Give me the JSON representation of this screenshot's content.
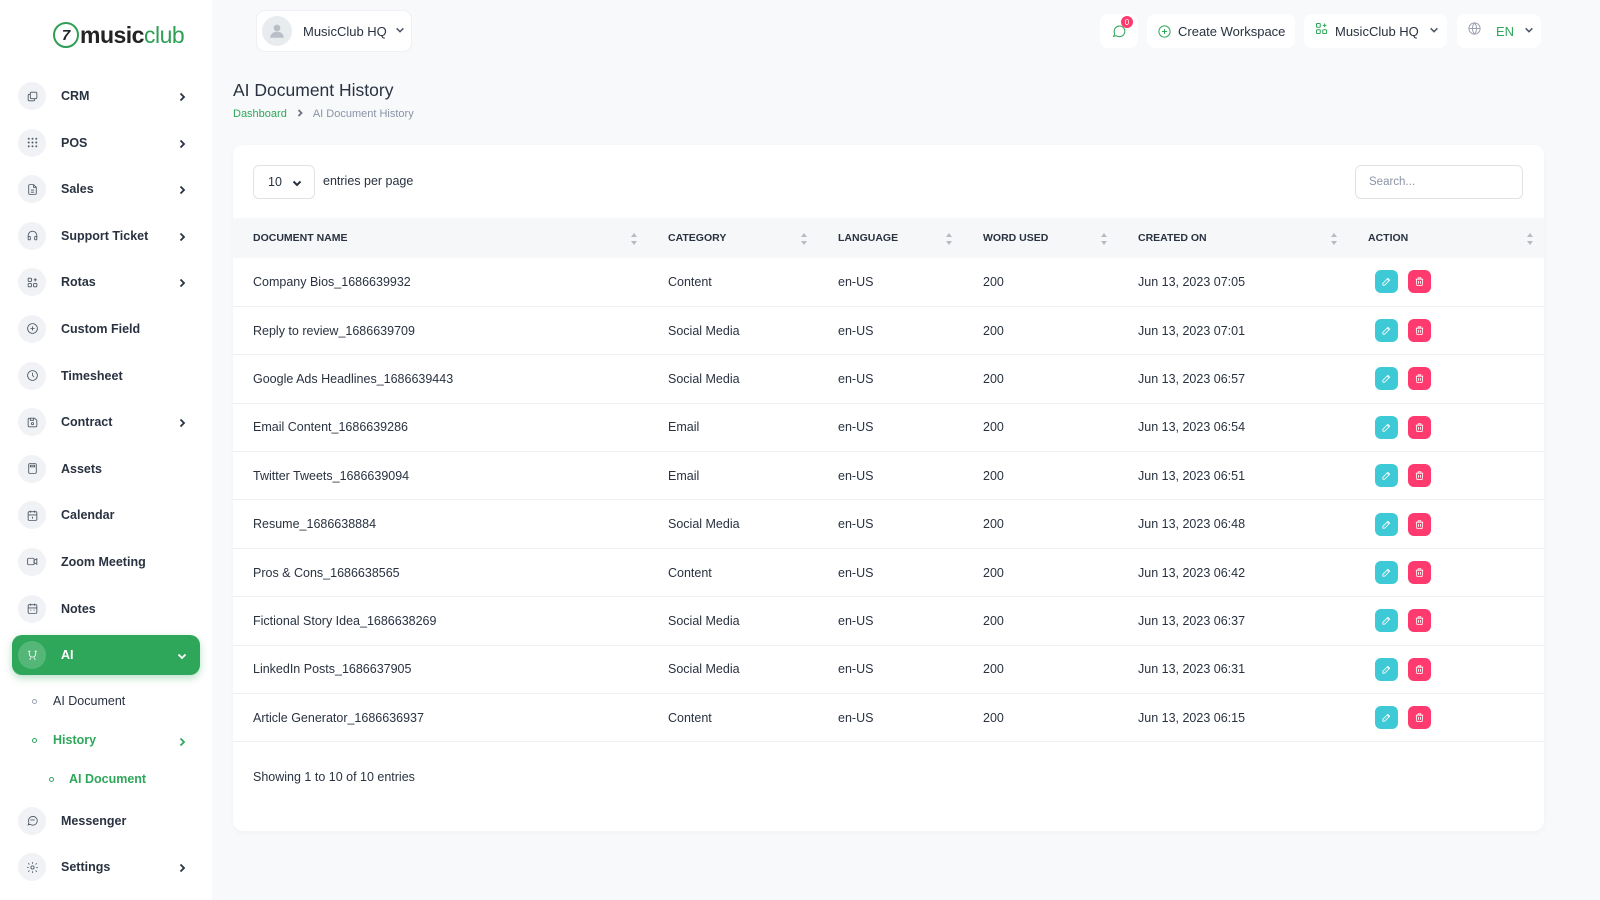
{
  "brand": {
    "logo_mark": "7",
    "name_part1": "music",
    "name_part2": "club"
  },
  "workspace_switcher": {
    "label": "MusicClub HQ"
  },
  "header": {
    "messages_badge": "0",
    "create_workspace_label": "Create Workspace",
    "workspace_label": "MusicClub HQ",
    "language_label": "EN"
  },
  "sidebar": {
    "items": [
      {
        "label": "CRM",
        "icon": "layers-icon",
        "has_chevron": true
      },
      {
        "label": "POS",
        "icon": "grid-dots-icon",
        "has_chevron": true
      },
      {
        "label": "Sales",
        "icon": "file-icon",
        "has_chevron": true
      },
      {
        "label": "Support Ticket",
        "icon": "headphones-icon",
        "has_chevron": true
      },
      {
        "label": "Rotas",
        "icon": "apps-icon",
        "has_chevron": true
      },
      {
        "label": "Custom Field",
        "icon": "plus-circle-icon",
        "has_chevron": false
      },
      {
        "label": "Timesheet",
        "icon": "clock-icon",
        "has_chevron": false
      },
      {
        "label": "Contract",
        "icon": "device-floppy-icon",
        "has_chevron": true
      },
      {
        "label": "Assets",
        "icon": "calculator-icon",
        "has_chevron": false
      },
      {
        "label": "Calendar",
        "icon": "calendar-icon",
        "has_chevron": false
      },
      {
        "label": "Zoom Meeting",
        "icon": "video-icon",
        "has_chevron": false
      },
      {
        "label": "Notes",
        "icon": "notes-calendar-icon",
        "has_chevron": false
      },
      {
        "label": "AI",
        "icon": "ai-icon",
        "has_chevron": true,
        "active": true
      }
    ],
    "ai_submenu": {
      "ai_document": "AI Document",
      "history": "History",
      "history_child": "AI Document"
    },
    "bottom_items": [
      {
        "label": "Messenger",
        "icon": "message-icon",
        "has_chevron": false
      },
      {
        "label": "Settings",
        "icon": "settings-icon",
        "has_chevron": true
      }
    ]
  },
  "page": {
    "title": "AI Document History",
    "breadcrumb": {
      "home": "Dashboard",
      "current": "AI Document History"
    }
  },
  "table_controls": {
    "per_page_value": "10",
    "per_page_label": "entries per page",
    "search_placeholder": "Search..."
  },
  "table": {
    "columns": [
      "Document Name",
      "Category",
      "Language",
      "Word Used",
      "Created On",
      "Action"
    ],
    "rows": [
      {
        "name": "Company Bios_1686639932",
        "category": "Content",
        "language": "en-US",
        "words": "200",
        "created": "Jun 13, 2023 07:05"
      },
      {
        "name": "Reply to review_1686639709",
        "category": "Social Media",
        "language": "en-US",
        "words": "200",
        "created": "Jun 13, 2023 07:01"
      },
      {
        "name": "Google Ads Headlines_1686639443",
        "category": "Social Media",
        "language": "en-US",
        "words": "200",
        "created": "Jun 13, 2023 06:57"
      },
      {
        "name": "Email Content_1686639286",
        "category": "Email",
        "language": "en-US",
        "words": "200",
        "created": "Jun 13, 2023 06:54"
      },
      {
        "name": "Twitter Tweets_1686639094",
        "category": "Email",
        "language": "en-US",
        "words": "200",
        "created": "Jun 13, 2023 06:51"
      },
      {
        "name": "Resume_1686638884",
        "category": "Social Media",
        "language": "en-US",
        "words": "200",
        "created": "Jun 13, 2023 06:48"
      },
      {
        "name": "Pros & Cons_1686638565",
        "category": "Content",
        "language": "en-US",
        "words": "200",
        "created": "Jun 13, 2023 06:42"
      },
      {
        "name": "Fictional Story Idea_1686638269",
        "category": "Social Media",
        "language": "en-US",
        "words": "200",
        "created": "Jun 13, 2023 06:37"
      },
      {
        "name": "LinkedIn Posts_1686637905",
        "category": "Social Media",
        "language": "en-US",
        "words": "200",
        "created": "Jun 13, 2023 06:31"
      },
      {
        "name": "Article Generator_1686636937",
        "category": "Content",
        "language": "en-US",
        "words": "200",
        "created": "Jun 13, 2023 06:15"
      }
    ],
    "footer": "Showing 1 to 10 of 10 entries"
  },
  "colors": {
    "brand_green": "#2fa75a",
    "edit_button": "#3ec9d6",
    "delete_button": "#ff3a6e",
    "page_background": "#f8f9fa"
  }
}
